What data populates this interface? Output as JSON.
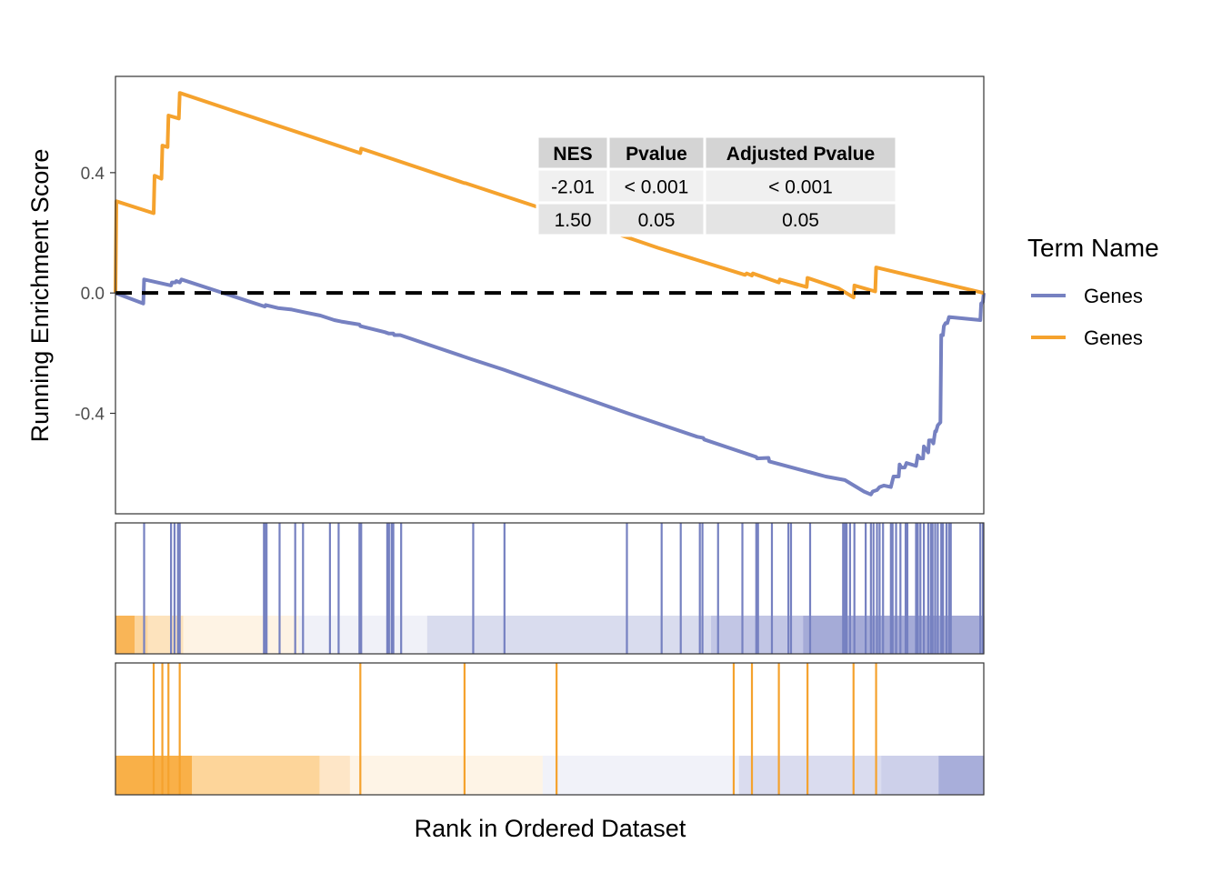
{
  "chart_data": {
    "type": "line",
    "ylabel": "Running Enrichment Score",
    "xlabel": "Rank in Ordered Dataset",
    "ylim": [
      -0.734,
      0.72
    ],
    "y_ticks": [
      {
        "value": 0.4,
        "label": "0.4"
      },
      {
        "value": 0.0,
        "label": "0.0"
      },
      {
        "value": -0.4,
        "label": "-0.4"
      }
    ],
    "x_range": [
      0,
      1000
    ],
    "zero_line": {
      "value": 0,
      "style": "dashed",
      "color": "#000000"
    },
    "legend": {
      "title": "Term Name",
      "placement": "right",
      "entries": [
        {
          "label": "Genes",
          "color": "#7681C1"
        },
        {
          "label": "Genes",
          "color": "#F5A22D"
        }
      ]
    },
    "stats_table": {
      "headers": [
        "NES",
        "Pvalue",
        "Adjusted Pvalue"
      ],
      "rows": [
        [
          "-2.01",
          "< 0.001",
          "< 0.001"
        ],
        [
          "1.50",
          "0.05",
          "0.05"
        ]
      ]
    },
    "series": [
      {
        "color": "#7681C1",
        "points": [
          [
            0,
            0.0
          ],
          [
            32,
            -0.035
          ],
          [
            33,
            0.045
          ],
          [
            64,
            0.025
          ],
          [
            65,
            0.035
          ],
          [
            69,
            0.035
          ],
          [
            70,
            0.04
          ],
          [
            74,
            0.035
          ],
          [
            76,
            0.045
          ],
          [
            172,
            -0.045
          ],
          [
            173,
            -0.04
          ],
          [
            187,
            -0.05
          ],
          [
            203,
            -0.055
          ],
          [
            219,
            -0.065
          ],
          [
            236,
            -0.075
          ],
          [
            252,
            -0.09
          ],
          [
            260,
            -0.095
          ],
          [
            281,
            -0.105
          ],
          [
            282,
            -0.11
          ],
          [
            310,
            -0.13
          ],
          [
            315,
            -0.135
          ],
          [
            320,
            -0.135
          ],
          [
            321,
            -0.14
          ],
          [
            328,
            -0.14
          ],
          [
            410,
            -0.22
          ],
          [
            447,
            -0.255
          ],
          [
            590,
            -0.4
          ],
          [
            670,
            -0.478
          ],
          [
            677,
            -0.482
          ],
          [
            678,
            -0.487
          ],
          [
            738,
            -0.545
          ],
          [
            739,
            -0.55
          ],
          [
            752,
            -0.548
          ],
          [
            753,
            -0.56
          ],
          [
            818,
            -0.61
          ],
          [
            840,
            -0.622
          ],
          [
            862,
            -0.66
          ],
          [
            870,
            -0.67
          ],
          [
            872,
            -0.66
          ],
          [
            877,
            -0.655
          ],
          [
            880,
            -0.645
          ],
          [
            885,
            -0.64
          ],
          [
            893,
            -0.645
          ],
          [
            896,
            -0.61
          ],
          [
            902,
            -0.61
          ],
          [
            903,
            -0.57
          ],
          [
            905,
            -0.58
          ],
          [
            909,
            -0.58
          ],
          [
            911,
            -0.565
          ],
          [
            922,
            -0.575
          ],
          [
            924,
            -0.54
          ],
          [
            927,
            -0.55
          ],
          [
            930,
            -0.55
          ],
          [
            931,
            -0.51
          ],
          [
            936,
            -0.53
          ],
          [
            937,
            -0.49
          ],
          [
            940,
            -0.49
          ],
          [
            942,
            -0.5
          ],
          [
            944,
            -0.46
          ],
          [
            945,
            -0.46
          ],
          [
            947,
            -0.44
          ],
          [
            950,
            -0.43
          ],
          [
            951,
            -0.14
          ],
          [
            953,
            -0.14
          ],
          [
            954,
            -0.11
          ],
          [
            956,
            -0.1
          ],
          [
            958,
            -0.1
          ],
          [
            960,
            -0.08
          ],
          [
            996,
            -0.09
          ],
          [
            997,
            -0.035
          ],
          [
            999,
            -0.03
          ],
          [
            1000,
            0.0
          ]
        ]
      },
      {
        "color": "#F5A22D",
        "points": [
          [
            0,
            0.0
          ],
          [
            1,
            0.305
          ],
          [
            44,
            0.265
          ],
          [
            45,
            0.39
          ],
          [
            53,
            0.38
          ],
          [
            54,
            0.49
          ],
          [
            60,
            0.485
          ],
          [
            61,
            0.59
          ],
          [
            73,
            0.58
          ],
          [
            74,
            0.665
          ],
          [
            282,
            0.465
          ],
          [
            283,
            0.48
          ],
          [
            402,
            0.365
          ],
          [
            403,
            0.365
          ],
          [
            508,
            0.265
          ],
          [
            625,
            0.15
          ],
          [
            725,
            0.06
          ],
          [
            727,
            0.065
          ],
          [
            733,
            0.058
          ],
          [
            734,
            0.065
          ],
          [
            764,
            0.035
          ],
          [
            765,
            0.045
          ],
          [
            796,
            0.02
          ],
          [
            797,
            0.05
          ],
          [
            833,
            0.015
          ],
          [
            850,
            -0.015
          ],
          [
            851,
            0.025
          ],
          [
            875,
            0.005
          ],
          [
            876,
            0.085
          ],
          [
            1000,
            0.0
          ]
        ]
      }
    ],
    "hit_tracks": [
      {
        "color": "#7681C1",
        "hits": [
          33,
          64,
          68,
          72,
          74,
          171,
          172,
          174,
          189,
          207,
          216,
          247,
          257,
          281,
          283,
          313,
          315,
          318,
          320,
          329,
          412,
          448,
          589,
          629,
          651,
          673,
          676,
          694,
          722,
          738,
          740,
          756,
          775,
          778,
          800,
          838,
          840,
          842,
          846,
          851,
          864,
          870,
          873,
          877,
          880,
          884,
          893,
          895,
          899,
          904,
          910,
          912,
          922,
          924,
          927,
          931,
          936,
          939,
          941,
          944,
          947,
          951,
          953,
          957,
          960,
          962,
          996,
          999
        ]
      },
      {
        "color": "#F5A22D",
        "hits": [
          44,
          54,
          61,
          74,
          282,
          402,
          508,
          712,
          733,
          764,
          797,
          850,
          876
        ]
      }
    ],
    "rank_gradient_bands": [
      {
        "bands": [
          [
            0,
            22,
            "#F9B557"
          ],
          [
            22,
            37,
            "#FCD59D"
          ],
          [
            37,
            78,
            "#FDE3BD"
          ],
          [
            78,
            211,
            "#FEF3E4"
          ],
          [
            211,
            359,
            "#F0F1F8"
          ],
          [
            359,
            686,
            "#D9DCEE"
          ],
          [
            686,
            792,
            "#C2C6E5"
          ],
          [
            792,
            1000,
            "#A5ABD7"
          ]
        ]
      },
      {
        "bands": [
          [
            0,
            88,
            "#F9B048"
          ],
          [
            88,
            235,
            "#FDD59A"
          ],
          [
            235,
            270,
            "#FEE6C7"
          ],
          [
            270,
            492,
            "#FEF4E6"
          ],
          [
            492,
            718,
            "#F1F2F9"
          ],
          [
            718,
            882,
            "#DADCEF"
          ],
          [
            882,
            948,
            "#CDD0EA"
          ],
          [
            948,
            1000,
            "#A8AEDA"
          ]
        ]
      }
    ]
  }
}
